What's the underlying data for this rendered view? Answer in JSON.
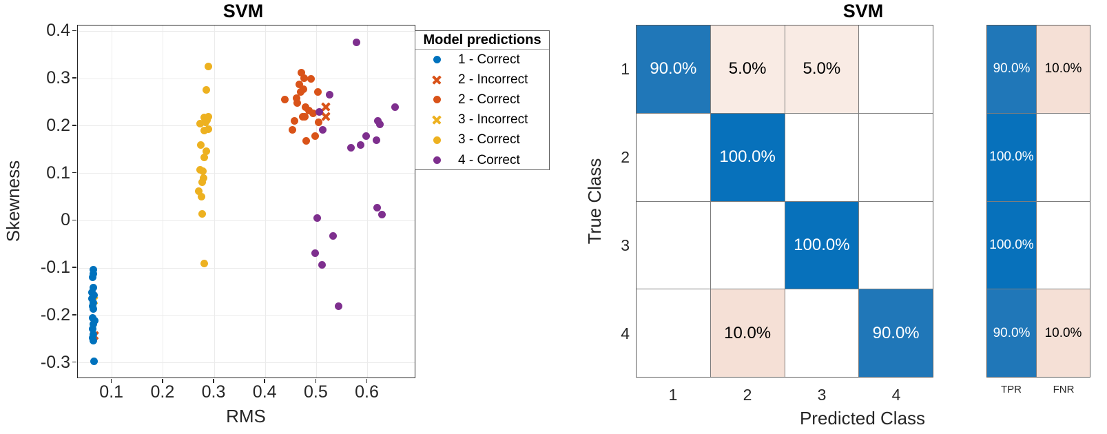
{
  "chart_data": [
    {
      "type": "scatter",
      "title": "SVM",
      "xlabel": "RMS",
      "ylabel": "Skewness",
      "xlim": [
        0.033,
        0.695
      ],
      "ylim": [
        -0.334,
        0.412
      ],
      "grid": true,
      "xticks": [
        {
          "label": "0.1",
          "value": 0.1
        },
        {
          "label": "0.2",
          "value": 0.2
        },
        {
          "label": "0.3",
          "value": 0.3
        },
        {
          "label": "0.4",
          "value": 0.4
        },
        {
          "label": "0.5",
          "value": 0.5
        },
        {
          "label": "0.6",
          "value": 0.6
        }
      ],
      "yticks": [
        {
          "label": "-0.3",
          "value": -0.3
        },
        {
          "label": "-0.2",
          "value": -0.2
        },
        {
          "label": "-0.1",
          "value": -0.1
        },
        {
          "label": "0",
          "value": 0.0
        },
        {
          "label": "0.1",
          "value": 0.1
        },
        {
          "label": "0.2",
          "value": 0.2
        },
        {
          "label": "0.3",
          "value": 0.3
        },
        {
          "label": "0.4",
          "value": 0.4
        }
      ],
      "legend_title": "Model predictions",
      "legend": [
        {
          "label": "1 - Correct",
          "marker": "dot",
          "color": "#0072BD"
        },
        {
          "label": "2 - Incorrect",
          "marker": "x",
          "color": "#D95319"
        },
        {
          "label": "2 - Correct",
          "marker": "dot",
          "color": "#D95319"
        },
        {
          "label": "3 - Incorrect",
          "marker": "x",
          "color": "#EDB120"
        },
        {
          "label": "3 - Correct",
          "marker": "dot",
          "color": "#EDB120"
        },
        {
          "label": "4 - Correct",
          "marker": "dot",
          "color": "#7E2F8E"
        }
      ],
      "series": [
        {
          "name": "2 - Incorrect",
          "marker": "x",
          "color": "#D95319",
          "points": [
            [
              0.519,
              0.24
            ],
            [
              0.518,
              0.22
            ],
            [
              0.0655,
              -0.243
            ]
          ]
        },
        {
          "name": "3 - Incorrect",
          "marker": "x",
          "color": "#EDB120",
          "points": [
            [
              0.0635,
              -0.168
            ]
          ]
        },
        {
          "name": "1 - Correct",
          "marker": "dot",
          "color": "#0072BD",
          "points": [
            [
              0.063,
              -0.104
            ],
            [
              0.064,
              -0.112
            ],
            [
              0.062,
              -0.12
            ],
            [
              0.064,
              -0.142
            ],
            [
              0.06,
              -0.151
            ],
            [
              0.065,
              -0.157
            ],
            [
              0.061,
              -0.165
            ],
            [
              0.063,
              -0.173
            ],
            [
              0.062,
              -0.181
            ],
            [
              0.064,
              -0.187
            ],
            [
              0.062,
              -0.206
            ],
            [
              0.066,
              -0.211
            ],
            [
              0.063,
              -0.219
            ],
            [
              0.062,
              -0.228
            ],
            [
              0.063,
              -0.24
            ],
            [
              0.062,
              -0.248
            ],
            [
              0.064,
              -0.253
            ],
            [
              0.065,
              -0.297
            ]
          ]
        },
        {
          "name": "2 - Correct",
          "marker": "dot",
          "color": "#D95319",
          "points": [
            [
              0.471,
              0.313
            ],
            [
              0.476,
              0.301
            ],
            [
              0.489,
              0.299
            ],
            [
              0.467,
              0.288
            ],
            [
              0.474,
              0.278
            ],
            [
              0.469,
              0.271
            ],
            [
              0.503,
              0.271
            ],
            [
              0.438,
              0.256
            ],
            [
              0.461,
              0.259
            ],
            [
              0.463,
              0.248
            ],
            [
              0.478,
              0.24
            ],
            [
              0.485,
              0.232
            ],
            [
              0.493,
              0.226
            ],
            [
              0.473,
              0.22
            ],
            [
              0.477,
              0.219
            ],
            [
              0.457,
              0.21
            ],
            [
              0.504,
              0.207
            ],
            [
              0.453,
              0.192
            ],
            [
              0.497,
              0.178
            ],
            [
              0.48,
              0.169
            ]
          ]
        },
        {
          "name": "3 - Correct",
          "marker": "dot",
          "color": "#EDB120",
          "points": [
            [
              0.288,
              0.325
            ],
            [
              0.284,
              0.276
            ],
            [
              0.28,
              0.218
            ],
            [
              0.288,
              0.22
            ],
            [
              0.286,
              0.212
            ],
            [
              0.272,
              0.205
            ],
            [
              0.283,
              0.208
            ],
            [
              0.281,
              0.19
            ],
            [
              0.289,
              0.193
            ],
            [
              0.274,
              0.16
            ],
            [
              0.285,
              0.147
            ],
            [
              0.28,
              0.133
            ],
            [
              0.272,
              0.108
            ],
            [
              0.278,
              0.104
            ],
            [
              0.279,
              0.09
            ],
            [
              0.277,
              0.081
            ],
            [
              0.269,
              0.062
            ],
            [
              0.275,
              0.051
            ],
            [
              0.277,
              0.015
            ],
            [
              0.281,
              -0.09
            ]
          ]
        },
        {
          "name": "4 - Correct",
          "marker": "dot",
          "color": "#7E2F8E",
          "points": [
            [
              0.578,
              0.377
            ],
            [
              0.654,
              0.24
            ],
            [
              0.526,
              0.266
            ],
            [
              0.505,
              0.23
            ],
            [
              0.512,
              0.191
            ],
            [
              0.62,
              0.211
            ],
            [
              0.624,
              0.204
            ],
            [
              0.597,
              0.179
            ],
            [
              0.617,
              0.17
            ],
            [
              0.587,
              0.16
            ],
            [
              0.567,
              0.154
            ],
            [
              0.619,
              0.028
            ],
            [
              0.628,
              0.013
            ],
            [
              0.501,
              0.005
            ],
            [
              0.532,
              -0.032
            ],
            [
              0.498,
              -0.069
            ],
            [
              0.511,
              -0.093
            ],
            [
              0.543,
              -0.18
            ]
          ]
        }
      ]
    },
    {
      "type": "heatmap",
      "title": "SVM",
      "xlabel": "Predicted Class",
      "ylabel": "True Class",
      "row_labels": [
        "1",
        "2",
        "3",
        "4"
      ],
      "col_labels": [
        "1",
        "2",
        "3",
        "4"
      ],
      "cells": [
        [
          "90.0%",
          "5.0%",
          "5.0%",
          ""
        ],
        [
          "",
          "100.0%",
          "",
          ""
        ],
        [
          "",
          "",
          "100.0%",
          ""
        ],
        [
          "",
          "10.0%",
          "",
          "90.0%"
        ]
      ],
      "cell_styles": [
        [
          "blue90",
          "pink5",
          "pink5",
          "white"
        ],
        [
          "white",
          "blue100",
          "white",
          "white"
        ],
        [
          "white",
          "white",
          "blue100",
          "white"
        ],
        [
          "white",
          "pink10",
          "white",
          "blue90"
        ]
      ],
      "summary_cols": [
        "TPR",
        "FNR"
      ],
      "summary_values": [
        [
          "90.0%",
          "10.0%"
        ],
        [
          "100.0%",
          ""
        ],
        [
          "100.0%",
          ""
        ],
        [
          "90.0%",
          "10.0%"
        ]
      ],
      "summary_styles": [
        [
          "blue90",
          "pink10"
        ],
        [
          "blue100",
          "white"
        ],
        [
          "blue100",
          "white"
        ],
        [
          "blue90",
          "pink10"
        ]
      ],
      "palette": {
        "blue100": "#0771BB",
        "blue90": "#2077B8",
        "pink5": "#F9EBE4",
        "pink10": "#F5E0D6",
        "white": "#FFFFFF"
      }
    }
  ]
}
